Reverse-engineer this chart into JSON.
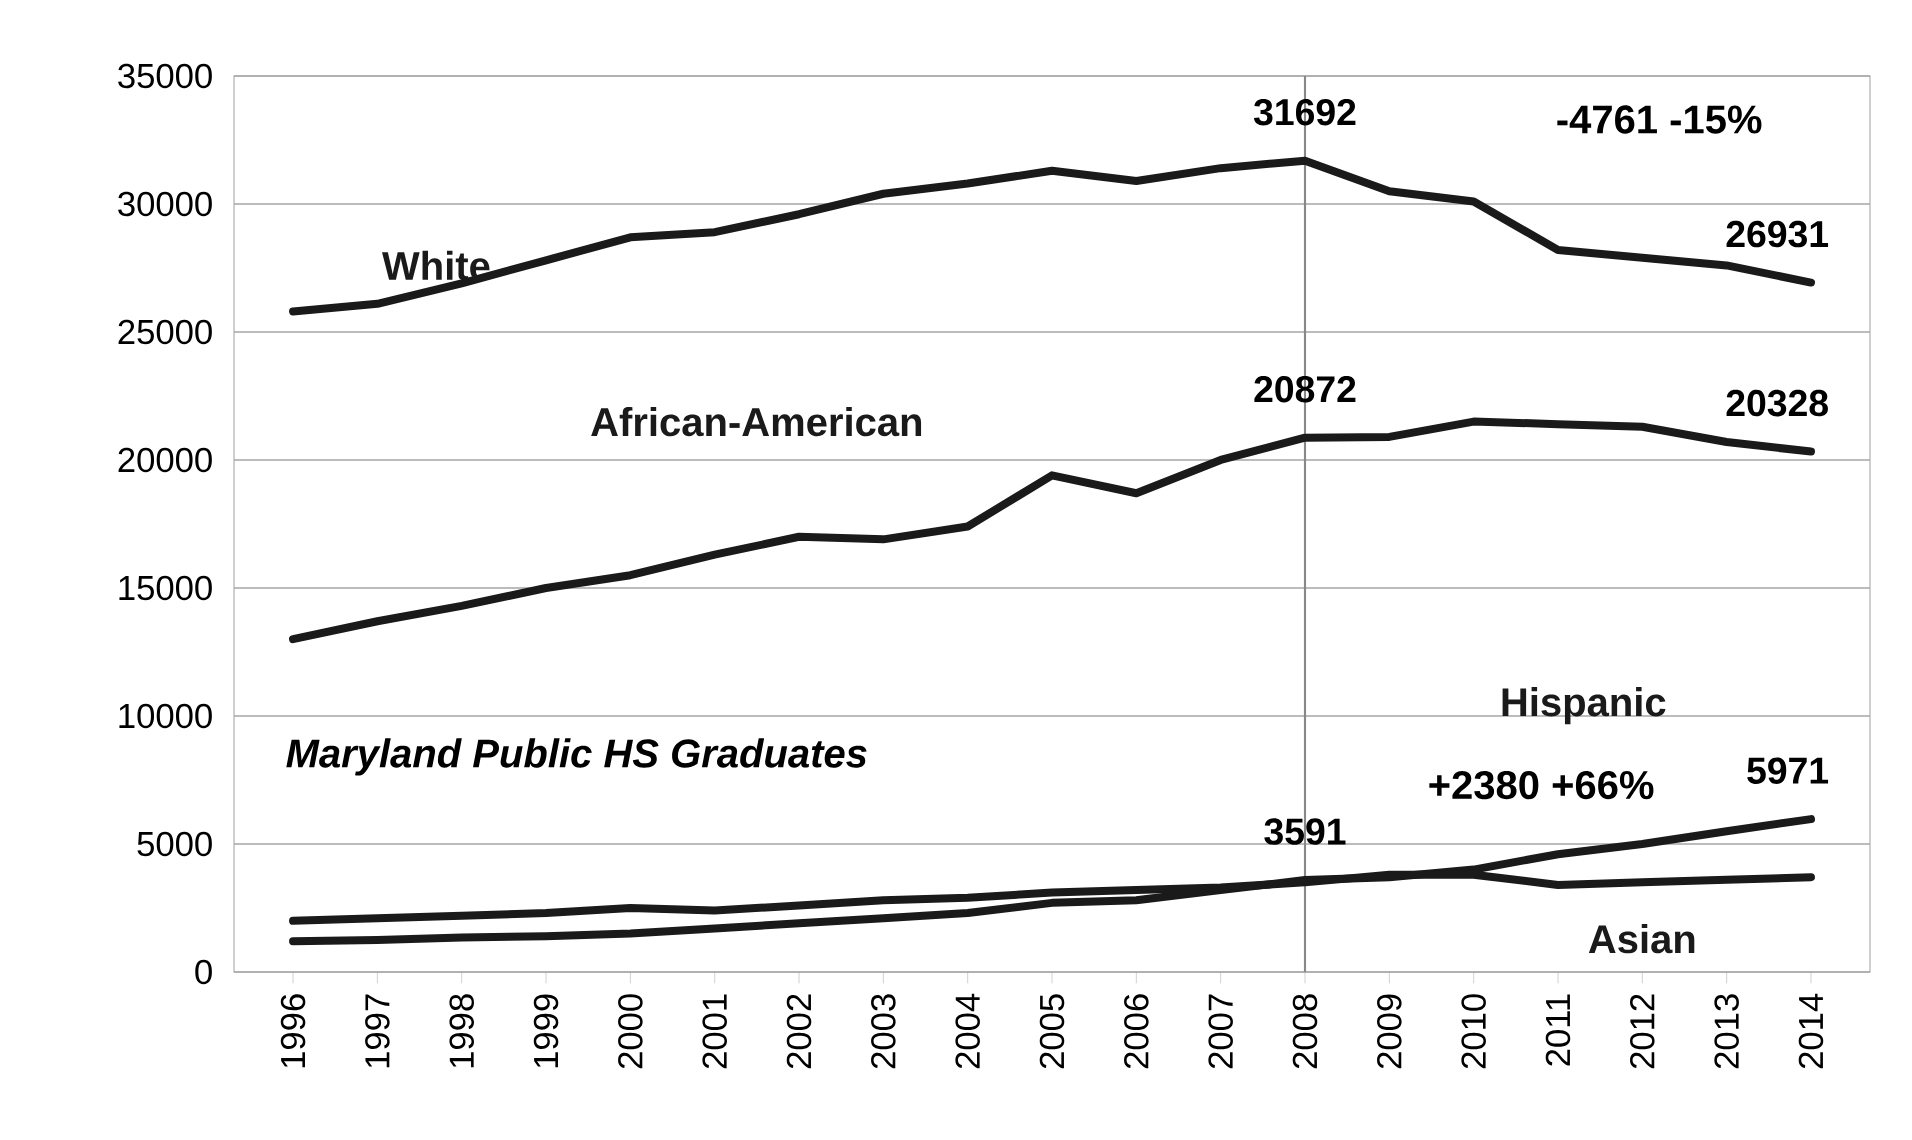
{
  "chart_data": {
    "type": "line",
    "title": "Maryland Public HS Graduates",
    "x": [
      1996,
      1997,
      1998,
      1999,
      2000,
      2001,
      2002,
      2003,
      2004,
      2005,
      2006,
      2007,
      2008,
      2009,
      2010,
      2011,
      2012,
      2013,
      2014
    ],
    "series": [
      {
        "name": "White",
        "color": "#1a1a1a",
        "values": [
          25800,
          26100,
          26900,
          27800,
          28700,
          28900,
          29600,
          30400,
          30800,
          31300,
          30900,
          31400,
          31692,
          30500,
          30100,
          28200,
          27900,
          27600,
          26931
        ],
        "value_labels": [
          null,
          null,
          null,
          null,
          null,
          null,
          null,
          null,
          null,
          null,
          null,
          null,
          "31692",
          null,
          null,
          null,
          null,
          null,
          "26931"
        ]
      },
      {
        "name": "African-American",
        "color": "#1a1a1a",
        "values": [
          13000,
          13700,
          14300,
          15000,
          15500,
          16300,
          17000,
          16900,
          17400,
          19400,
          18700,
          20000,
          20872,
          20900,
          21500,
          21400,
          21300,
          20700,
          20328
        ],
        "value_labels": [
          null,
          null,
          null,
          null,
          null,
          null,
          null,
          null,
          null,
          null,
          null,
          null,
          "20872",
          null,
          null,
          null,
          null,
          null,
          "20328"
        ]
      },
      {
        "name": "Hispanic",
        "color": "#1a1a1a",
        "values": [
          1200,
          1250,
          1350,
          1400,
          1500,
          1700,
          1900,
          2100,
          2300,
          2700,
          2800,
          3200,
          3591,
          3700,
          4000,
          4600,
          5000,
          5500,
          5971
        ],
        "value_labels": [
          null,
          null,
          null,
          null,
          null,
          null,
          null,
          null,
          null,
          null,
          null,
          null,
          "3591",
          null,
          null,
          null,
          null,
          null,
          "5971"
        ]
      },
      {
        "name": "Asian",
        "color": "#1a1a1a",
        "values": [
          2000,
          2100,
          2200,
          2300,
          2500,
          2400,
          2600,
          2800,
          2900,
          3100,
          3200,
          3300,
          3500,
          3800,
          3800,
          3400,
          3500,
          3600,
          3700
        ]
      }
    ],
    "xlim": [
      1995.3,
      2014.7
    ],
    "ylim": [
      0,
      35000
    ],
    "xticks": [
      1996,
      1997,
      1998,
      1999,
      2000,
      2001,
      2002,
      2003,
      2004,
      2005,
      2006,
      2007,
      2008,
      2009,
      2010,
      2011,
      2012,
      2013,
      2014
    ],
    "yticks": [
      0,
      5000,
      10000,
      15000,
      20000,
      25000,
      30000,
      35000
    ],
    "grid": "y",
    "legend": false,
    "marker": "none",
    "line_style": "solid",
    "ref_lines": [
      {
        "axis": "x",
        "value": 2008,
        "color": "#888888"
      }
    ],
    "annotations": [
      "-4761 -15%",
      "+2380 +66%"
    ]
  }
}
